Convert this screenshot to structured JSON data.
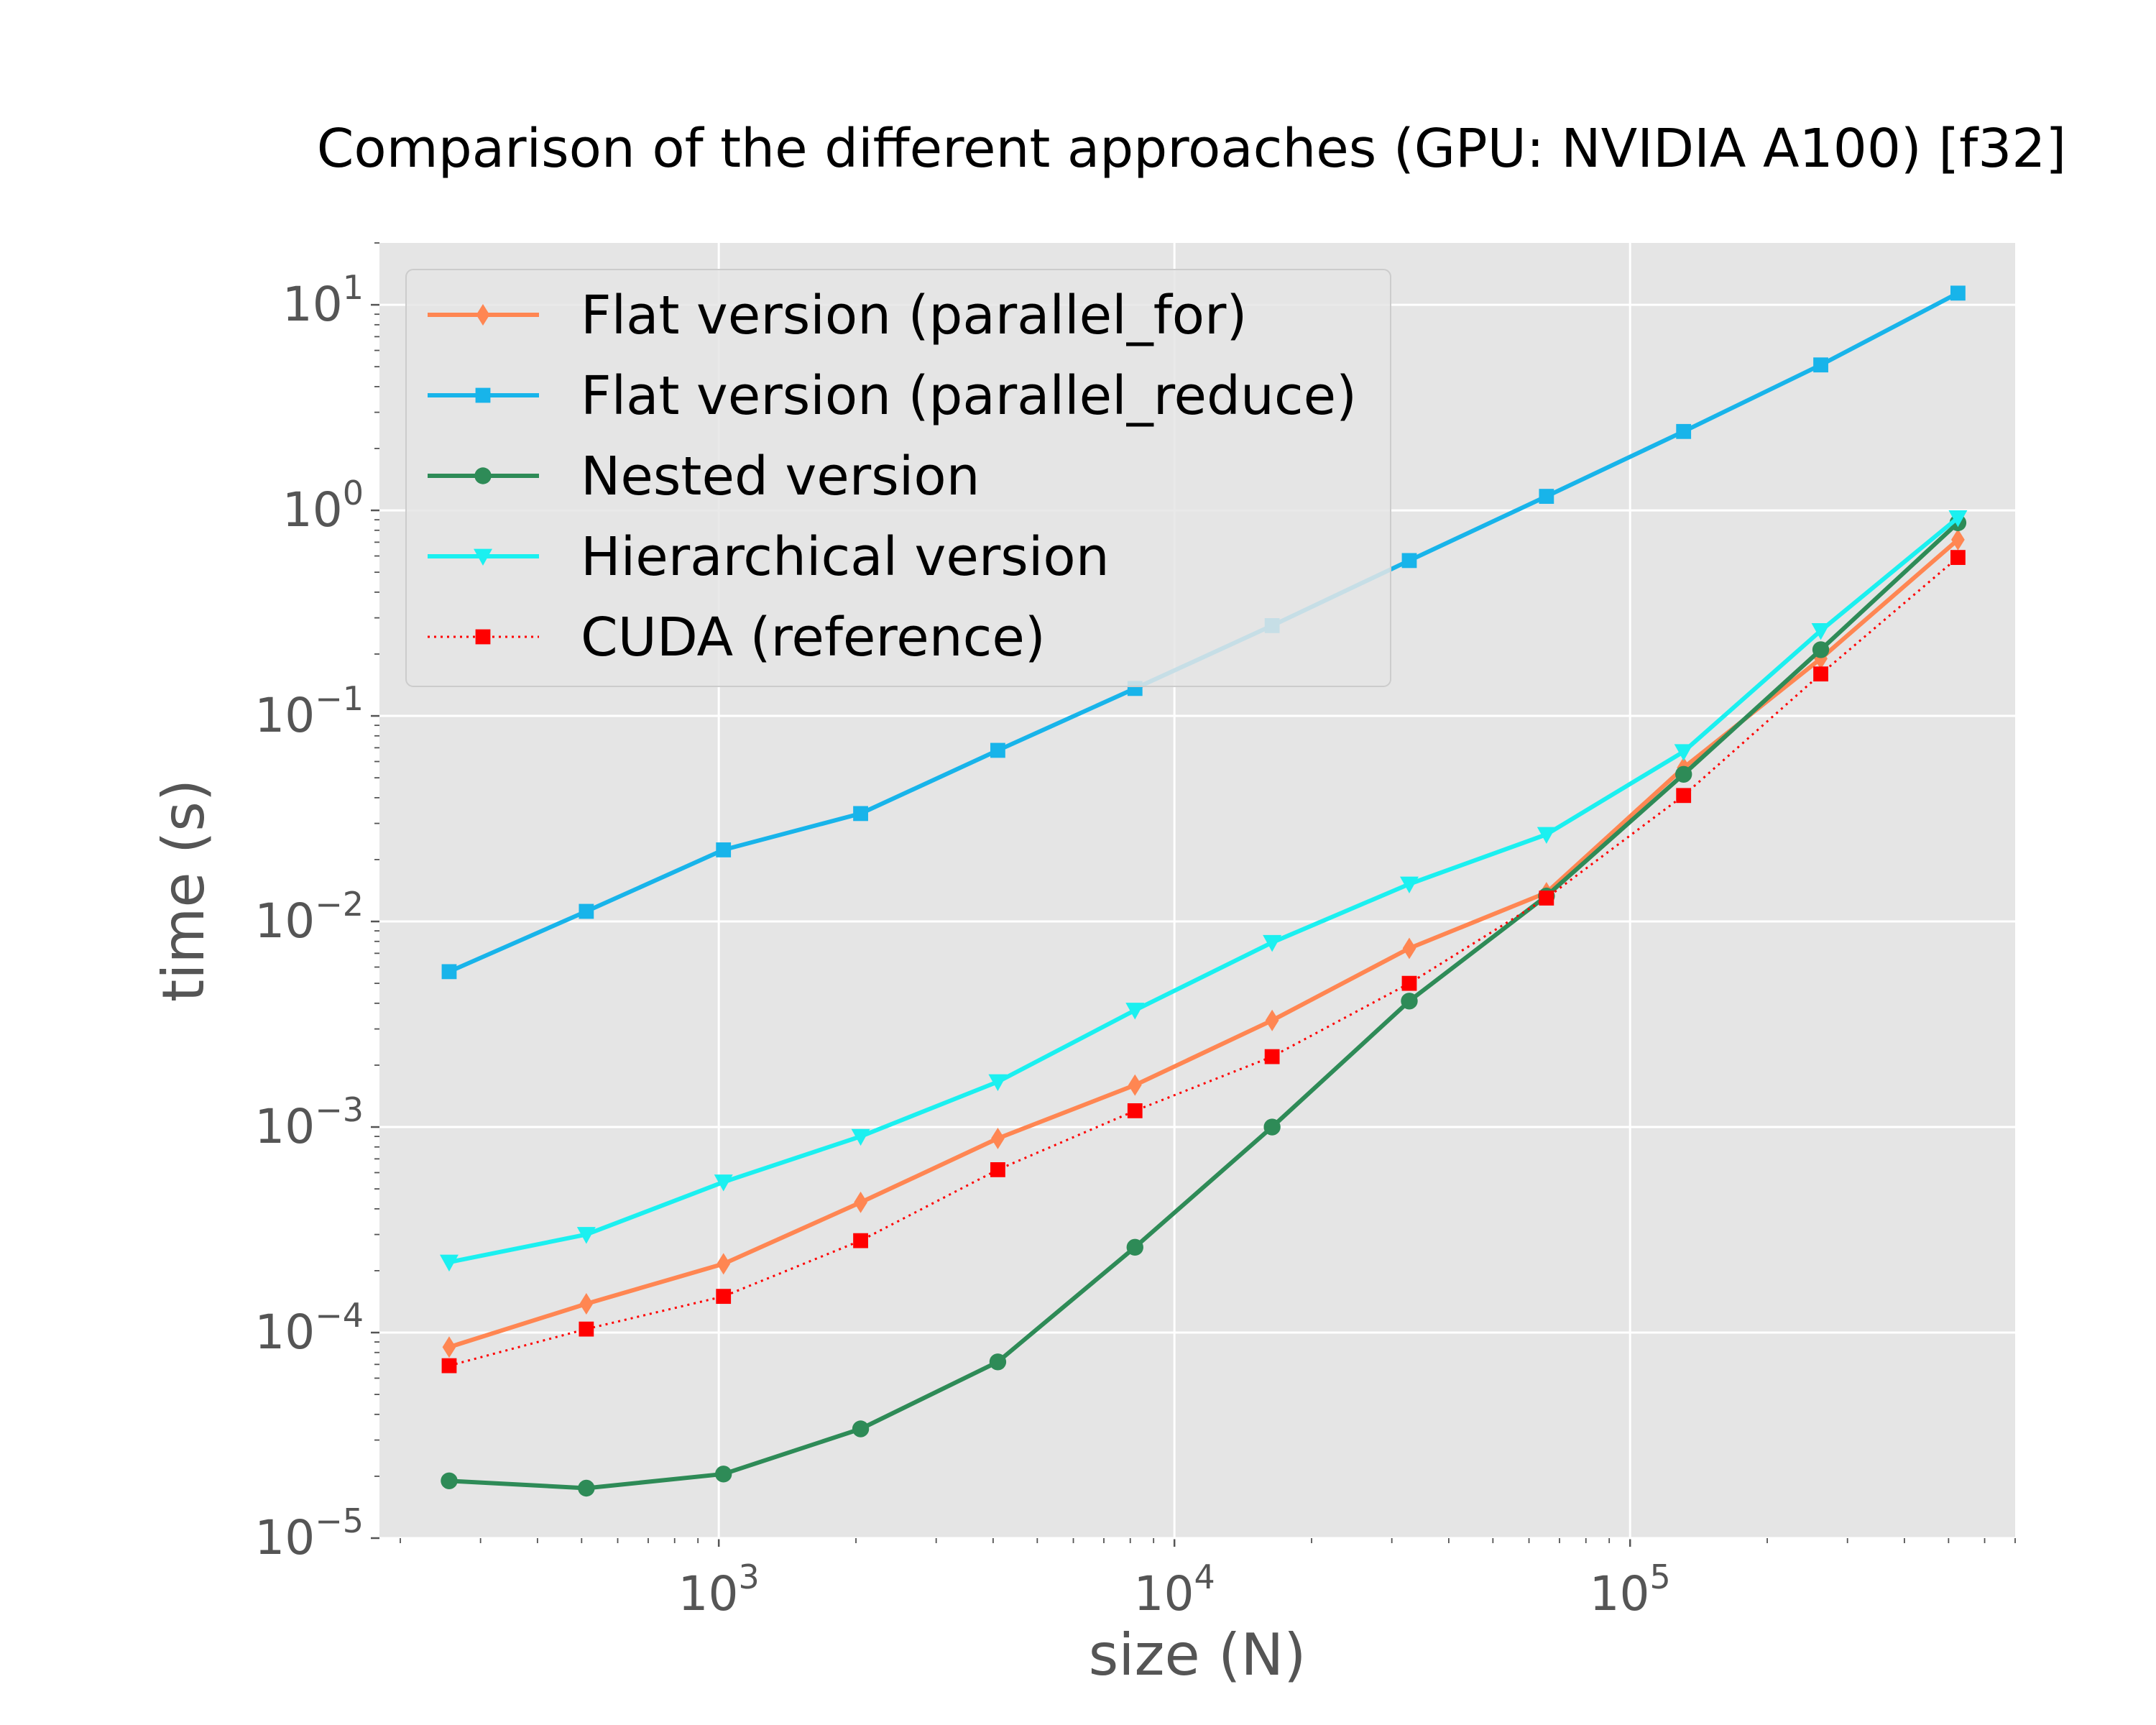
{
  "chart_data": {
    "type": "line",
    "title": "Comparison of the different approaches (GPU: NVIDIA A100) [f32]",
    "xlabel": "size (N)",
    "ylabel": "time (s)",
    "xscale": "log",
    "yscale": "log",
    "xlim": [
      180,
      700000
    ],
    "ylim": [
      1e-05,
      20
    ],
    "x_ticks": [
      {
        "base": "10",
        "exp": "3",
        "value": 1000
      },
      {
        "base": "10",
        "exp": "4",
        "value": 10000
      },
      {
        "base": "10",
        "exp": "5",
        "value": 100000
      }
    ],
    "y_ticks": [
      {
        "base": "10",
        "exp": "−5",
        "value": 1e-05
      },
      {
        "base": "10",
        "exp": "−4",
        "value": 0.0001
      },
      {
        "base": "10",
        "exp": "−3",
        "value": 0.001
      },
      {
        "base": "10",
        "exp": "−2",
        "value": 0.01
      },
      {
        "base": "10",
        "exp": "−1",
        "value": 0.1
      },
      {
        "base": "10",
        "exp": "0",
        "value": 1
      },
      {
        "base": "10",
        "exp": "1",
        "value": 10
      }
    ],
    "grid": true,
    "legend_position": "top-left",
    "x": [
      256,
      512,
      1024,
      2048,
      4096,
      8192,
      16384,
      32768,
      65536,
      131072,
      262144,
      524288
    ],
    "series": [
      {
        "name": "Flat version (parallel_for)",
        "color": "#FF8652",
        "marker": "diamond",
        "linestyle": "solid",
        "values": [
          8.5e-05,
          0.000138,
          0.000216,
          0.00043,
          0.00088,
          0.0016,
          0.0033,
          0.0074,
          0.0138,
          0.056,
          0.19,
          0.72
        ]
      },
      {
        "name": "Flat version (parallel_reduce)",
        "color": "#18B4EA",
        "marker": "square",
        "linestyle": "solid",
        "values": [
          0.0057,
          0.0112,
          0.0223,
          0.0335,
          0.068,
          0.136,
          0.275,
          0.57,
          1.17,
          2.42,
          5.1,
          11.4
        ]
      },
      {
        "name": "Nested version",
        "color": "#2E8B57",
        "marker": "circle",
        "linestyle": "solid",
        "values": [
          1.9e-05,
          1.75e-05,
          2.05e-05,
          3.4e-05,
          7.2e-05,
          0.00026,
          0.001,
          0.0041,
          0.0133,
          0.052,
          0.21,
          0.87
        ]
      },
      {
        "name": "Hierarchical version",
        "color": "#1BF0F0",
        "marker": "triangle-down",
        "linestyle": "solid",
        "values": [
          0.00022,
          0.0003,
          0.00054,
          0.0009,
          0.00166,
          0.0037,
          0.0079,
          0.0152,
          0.0265,
          0.067,
          0.26,
          0.92
        ]
      },
      {
        "name": "CUDA (reference)",
        "color": "#FF0000",
        "marker": "square",
        "linestyle": "dotted",
        "values": [
          6.9e-05,
          0.000104,
          0.00015,
          0.00028,
          0.00062,
          0.0012,
          0.0022,
          0.005,
          0.013,
          0.041,
          0.16,
          0.59
        ]
      }
    ]
  }
}
